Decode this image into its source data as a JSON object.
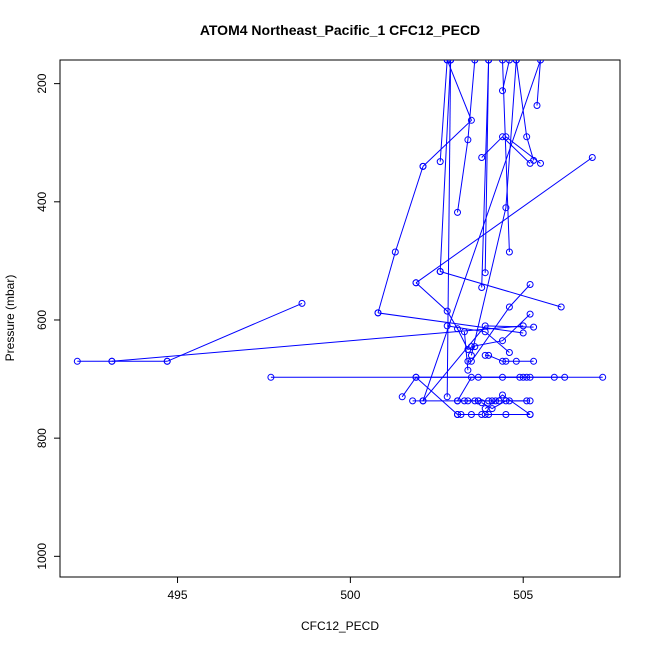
{
  "chart_data": {
    "type": "line",
    "title": "ATOM4 Northeast_Pacific_1 CFC12_PECD",
    "xlabel": "CFC12_PECD",
    "ylabel": "Pressure (mbar)",
    "xlim": [
      491.6,
      507.8
    ],
    "ylim": [
      1035,
      160
    ],
    "y_reversed": true,
    "x_ticks": [
      495,
      500,
      505
    ],
    "x_tick_labels": [
      "495",
      "500",
      "505"
    ],
    "y_ticks": [
      200,
      400,
      600,
      800,
      1000
    ],
    "y_tick_labels": [
      "200",
      "400",
      "600",
      "800",
      "1000"
    ],
    "grid": false,
    "legend": "none",
    "line_color": "#0000ff",
    "point_style": "open-circle",
    "series": [
      {
        "points": [
          [
            494.7,
            670
          ],
          [
            493.1,
            670
          ],
          [
            492.1,
            670
          ]
        ]
      },
      {
        "points": [
          [
            494.7,
            670
          ],
          [
            498.6,
            572
          ]
        ]
      },
      {
        "points": [
          [
            493.1,
            670
          ],
          [
            505.0,
            610
          ]
        ]
      },
      {
        "points": [
          [
            497.7,
            697
          ],
          [
            507.3,
            697
          ]
        ]
      },
      {
        "points": [
          [
            501.5,
            730
          ],
          [
            501.9,
            697
          ],
          [
            503.1,
            760
          ]
        ]
      },
      {
        "points": [
          [
            501.9,
            697
          ],
          [
            505.9,
            697
          ],
          [
            506.2,
            697
          ]
        ]
      },
      {
        "points": [
          [
            503.7,
            697
          ],
          [
            505.2,
            697
          ]
        ]
      },
      {
        "points": [
          [
            503.5,
            697
          ],
          [
            503.1,
            737
          ]
        ]
      },
      {
        "points": [
          [
            501.8,
            737
          ],
          [
            503.7,
            737
          ],
          [
            504.3,
            737
          ],
          [
            505.2,
            737
          ]
        ]
      },
      {
        "points": [
          [
            502.1,
            737
          ],
          [
            503.9,
            610
          ],
          [
            505.3,
            612
          ]
        ]
      },
      {
        "points": [
          [
            503.1,
            737
          ],
          [
            503.3,
            737
          ],
          [
            503.6,
            737
          ]
        ]
      },
      {
        "points": [
          [
            503.4,
            737
          ],
          [
            503.7,
            737
          ],
          [
            504.0,
            737
          ],
          [
            504.1,
            737
          ]
        ]
      },
      {
        "points": [
          [
            503.1,
            760
          ],
          [
            503.2,
            760
          ],
          [
            503.5,
            760
          ],
          [
            503.8,
            760
          ]
        ]
      },
      {
        "points": [
          [
            503.9,
            760
          ],
          [
            504.0,
            760
          ],
          [
            504.5,
            760
          ],
          [
            505.2,
            760
          ]
        ]
      },
      {
        "points": [
          [
            503.9,
            750
          ],
          [
            504.4,
            727
          ],
          [
            505.2,
            760
          ]
        ]
      },
      {
        "points": [
          [
            503.8,
            740
          ],
          [
            504.1,
            750
          ],
          [
            504.5,
            737
          ]
        ]
      },
      {
        "points": [
          [
            504.2,
            737
          ],
          [
            504.6,
            737
          ],
          [
            505.1,
            737
          ]
        ]
      },
      {
        "points": [
          [
            503.9,
            660
          ],
          [
            504.0,
            660
          ],
          [
            504.4,
            670
          ],
          [
            504.5,
            670
          ],
          [
            504.8,
            670
          ],
          [
            505.3,
            670
          ]
        ]
      },
      {
        "points": [
          [
            504.4,
            697
          ],
          [
            504.9,
            697
          ],
          [
            505.0,
            697
          ],
          [
            505.1,
            697
          ]
        ]
      },
      {
        "points": [
          [
            503.5,
            645
          ],
          [
            504.4,
            635
          ],
          [
            505.2,
            590
          ]
        ]
      },
      {
        "points": [
          [
            503.4,
            670
          ],
          [
            503.5,
            670
          ],
          [
            504.6,
            578
          ],
          [
            505.2,
            540
          ]
        ]
      },
      {
        "points": [
          [
            501.9,
            537
          ],
          [
            502.8,
            585
          ],
          [
            503.1,
            615
          ],
          [
            503.4,
            650
          ],
          [
            503.6,
            645
          ]
        ]
      },
      {
        "points": [
          [
            500.8,
            588
          ],
          [
            505.0,
            622
          ]
        ]
      },
      {
        "points": [
          [
            500.8,
            588
          ],
          [
            501.3,
            485
          ],
          [
            502.1,
            340
          ]
        ]
      },
      {
        "points": [
          [
            502.1,
            340
          ],
          [
            503.5,
            262
          ],
          [
            502.8,
            160
          ]
        ]
      },
      {
        "points": [
          [
            502.6,
            332
          ],
          [
            502.8,
            160
          ]
        ]
      },
      {
        "points": [
          [
            502.6,
            518
          ],
          [
            506.1,
            578
          ]
        ]
      },
      {
        "points": [
          [
            502.6,
            518
          ],
          [
            502.9,
            160
          ]
        ]
      },
      {
        "points": [
          [
            502.9,
            160
          ],
          [
            502.8,
            730
          ]
        ]
      },
      {
        "points": [
          [
            503.1,
            418
          ],
          [
            503.4,
            295
          ],
          [
            503.6,
            160
          ]
        ]
      },
      {
        "points": [
          [
            501.9,
            537
          ],
          [
            507.0,
            325
          ]
        ]
      },
      {
        "points": [
          [
            503.3,
            620
          ],
          [
            503.4,
            685
          ]
        ]
      },
      {
        "points": [
          [
            502.8,
            610
          ],
          [
            503.9,
            620
          ],
          [
            504.6,
            655
          ]
        ]
      },
      {
        "points": [
          [
            503.8,
            545
          ],
          [
            504.0,
            160
          ]
        ]
      },
      {
        "points": [
          [
            503.9,
            520
          ],
          [
            504.0,
            160
          ]
        ]
      },
      {
        "points": [
          [
            503.8,
            325
          ],
          [
            504.4,
            290
          ],
          [
            505.2,
            335
          ]
        ]
      },
      {
        "points": [
          [
            504.6,
            485
          ],
          [
            504.4,
            160
          ]
        ]
      },
      {
        "points": [
          [
            504.4,
            212
          ],
          [
            504.6,
            160
          ]
        ]
      },
      {
        "points": [
          [
            504.8,
            160
          ],
          [
            504.5,
            410
          ],
          [
            503.5,
            660
          ]
        ]
      },
      {
        "points": [
          [
            504.5,
            290
          ],
          [
            505.5,
            335
          ]
        ]
      },
      {
        "points": [
          [
            505.4,
            237
          ],
          [
            505.5,
            160
          ],
          [
            502.1,
            737
          ]
        ]
      },
      {
        "points": [
          [
            504.8,
            160
          ],
          [
            505.1,
            290
          ],
          [
            505.3,
            330
          ]
        ]
      }
    ]
  }
}
